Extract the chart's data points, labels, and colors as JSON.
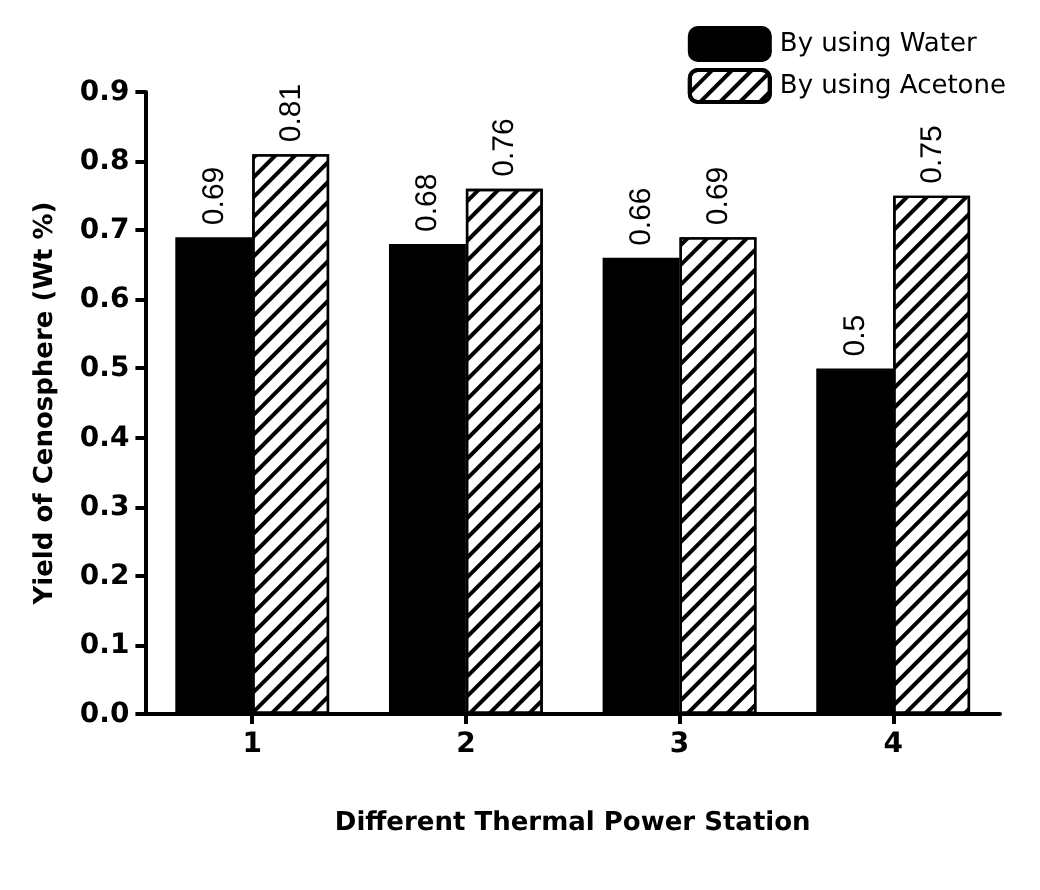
{
  "chart_data": {
    "type": "bar",
    "xlabel": "Different Thermal Power Station",
    "ylabel": "Yield of Cenosphere (Wt %)",
    "categories": [
      "1",
      "2",
      "3",
      "4"
    ],
    "series": [
      {
        "name": "By using Water",
        "color": "#000000",
        "values": [
          0.69,
          0.68,
          0.66,
          0.5
        ]
      },
      {
        "name": "By using Acetone",
        "color": "#ffffff",
        "values": [
          0.81,
          0.76,
          0.69,
          0.75
        ]
      }
    ],
    "ylim": [
      0,
      0.9
    ],
    "yticks": [
      {
        "value": 0,
        "label": "0.0"
      },
      {
        "value": 0.1,
        "label": "0.1"
      },
      {
        "value": 0.2,
        "label": "0.2"
      },
      {
        "value": 0.3,
        "label": "0.3"
      },
      {
        "value": 0.4,
        "label": "0.4"
      },
      {
        "value": 0.5,
        "label": "0.5"
      },
      {
        "value": 0.6,
        "label": "0.6"
      },
      {
        "value": 0.7,
        "label": "0.7"
      },
      {
        "value": 0.8,
        "label": "0.8"
      },
      {
        "value": 0.9,
        "label": "0.9"
      }
    ],
    "data_labels": true,
    "legend": "top right",
    "grid": false
  }
}
